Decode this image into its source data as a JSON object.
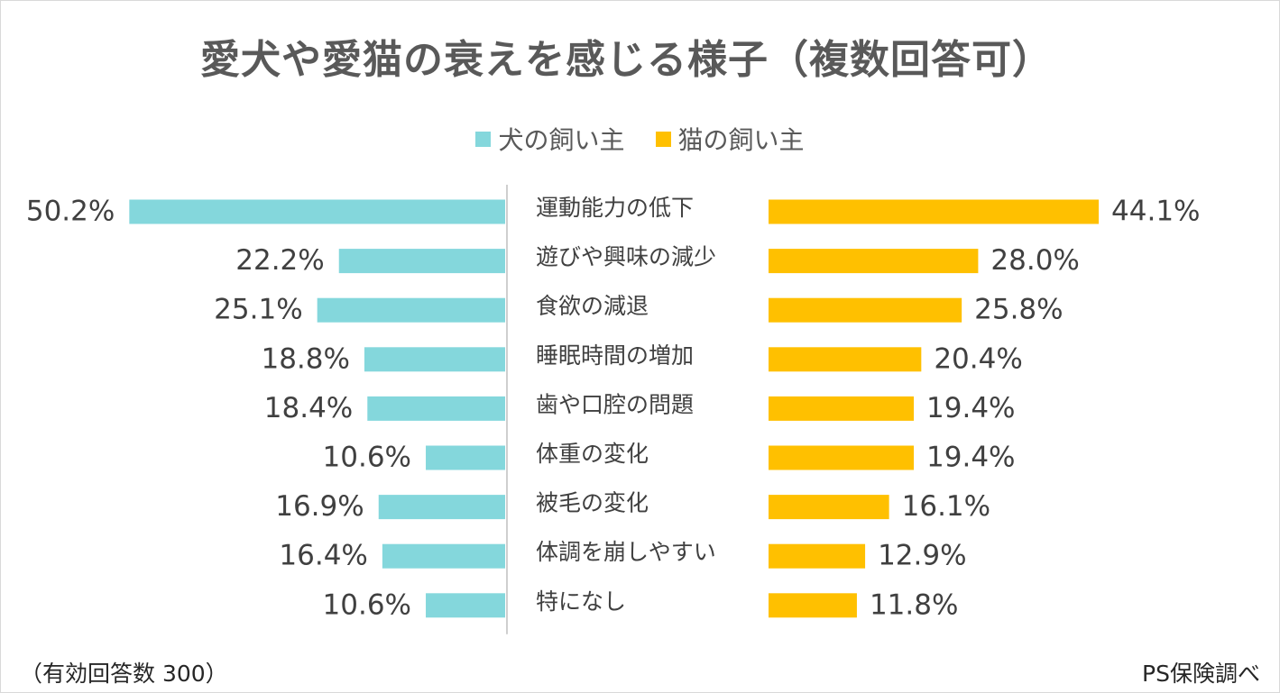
{
  "title": "愛犬や愛猫の衰えを感じる様子（複数回答可）",
  "legend": {
    "dog_label": "犬の飼い主",
    "cat_label": "猫の飼い主"
  },
  "colors": {
    "dog": "#84d7dc",
    "cat": "#ffc000",
    "axis": "#bfbfbf",
    "label": "#404040"
  },
  "footer": {
    "sample": "（有効回答数 300）",
    "source": "PS保険調べ"
  },
  "chart_data": {
    "type": "bar",
    "orientation": "horizontal-butterfly",
    "title": "愛犬や愛猫の衰えを感じる様子（複数回答可）",
    "categories": [
      "運動能力の低下",
      "遊びや興味の減少",
      "食欲の減退",
      "睡眠時間の増加",
      "歯や口腔の問題",
      "体重の変化",
      "被毛の変化",
      "体調を崩しやすい",
      "特になし"
    ],
    "series": [
      {
        "name": "犬の飼い主",
        "values": [
          50.2,
          22.2,
          25.1,
          18.8,
          18.4,
          10.6,
          16.9,
          16.4,
          10.6
        ]
      },
      {
        "name": "猫の飼い主",
        "values": [
          44.1,
          28.0,
          25.8,
          20.4,
          19.4,
          19.4,
          16.1,
          12.9,
          11.8
        ]
      }
    ],
    "value_labels": {
      "dog": [
        "50.2%",
        "22.2%",
        "25.1%",
        "18.8%",
        "18.4%",
        "10.6%",
        "16.9%",
        "16.4%",
        "10.6%"
      ],
      "cat": [
        "44.1%",
        "28.0%",
        "25.8%",
        "20.4%",
        "19.4%",
        "19.4%",
        "16.1%",
        "12.9%",
        "11.8%"
      ]
    },
    "unit": "%",
    "xlim": [
      0,
      60
    ],
    "legend_position": "top-center",
    "grid": false
  }
}
